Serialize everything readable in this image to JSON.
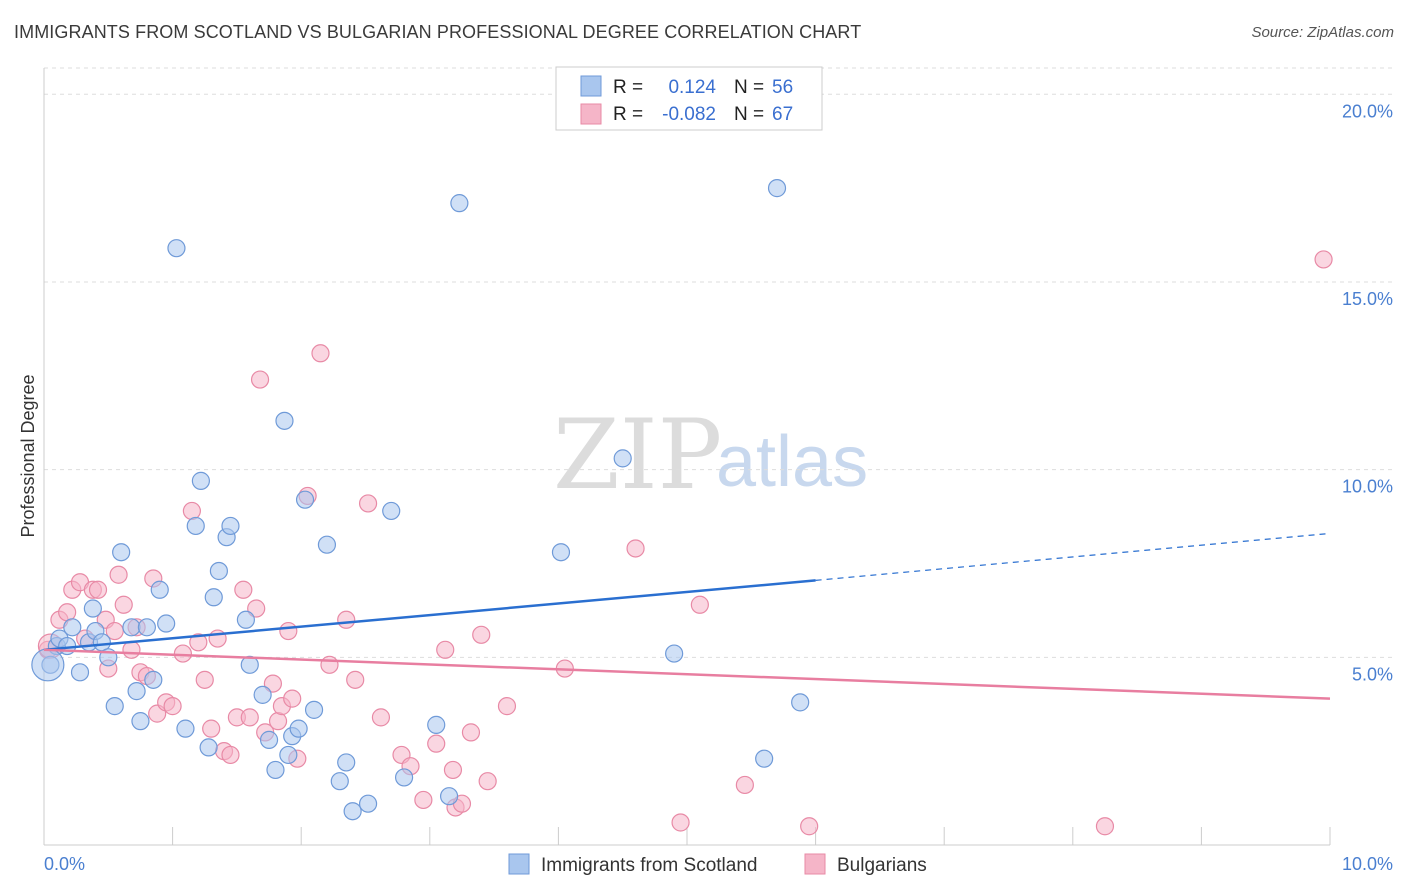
{
  "title": "IMMIGRANTS FROM SCOTLAND VS BULGARIAN PROFESSIONAL DEGREE CORRELATION CHART",
  "source": "Source: ZipAtlas.com",
  "watermark": {
    "zip": "ZIP",
    "atlas": "atlas"
  },
  "colors": {
    "blue_fill": "#a9c6ee",
    "blue_stroke": "#6f9ad8",
    "blue_line": "#2a6fd0",
    "pink_fill": "#f5b5c8",
    "pink_stroke": "#e88aa6",
    "pink_line": "#e87ea0",
    "tick_text": "#4a7fd0",
    "grid": "#dddddd"
  },
  "legend": {
    "rows": [
      {
        "r_label": "R =",
        "r_value": "0.124",
        "n_label": "N =",
        "n_value": "56"
      },
      {
        "r_label": "R =",
        "r_value": "-0.082",
        "n_label": "N =",
        "n_value": "67"
      }
    ]
  },
  "chart_data": {
    "type": "scatter",
    "xlabel": "",
    "ylabel": "Professional Degree",
    "xlim": [
      0,
      10
    ],
    "ylim": [
      0,
      20.7
    ],
    "x_ticks": [
      {
        "value": 0,
        "label": "0.0%"
      },
      {
        "value": 10,
        "label": "10.0%"
      }
    ],
    "y_ticks": [
      {
        "value": 5,
        "label": "5.0%"
      },
      {
        "value": 10,
        "label": "10.0%"
      },
      {
        "value": 15,
        "label": "15.0%"
      },
      {
        "value": 20,
        "label": "20.0%"
      }
    ],
    "grid": true,
    "legend_position": "bottom",
    "series": [
      {
        "name": "Immigrants from Scotland",
        "color": "#a9c6ee",
        "trend": {
          "x0": 0,
          "y0": 5.2,
          "x1": 6.0,
          "y1": 7.05,
          "dashed_to_x": 10,
          "dashed_to_y": 8.3
        },
        "points": [
          [
            0.05,
            4.8
          ],
          [
            0.1,
            5.3
          ],
          [
            0.12,
            5.5
          ],
          [
            0.18,
            5.3
          ],
          [
            0.22,
            5.8
          ],
          [
            0.28,
            4.6
          ],
          [
            0.35,
            5.4
          ],
          [
            0.38,
            6.3
          ],
          [
            0.4,
            5.7
          ],
          [
            0.45,
            5.4
          ],
          [
            0.5,
            5.0
          ],
          [
            0.55,
            3.7
          ],
          [
            0.6,
            7.8
          ],
          [
            0.68,
            5.8
          ],
          [
            0.72,
            4.1
          ],
          [
            0.75,
            3.3
          ],
          [
            0.8,
            5.8
          ],
          [
            0.85,
            4.4
          ],
          [
            0.9,
            6.8
          ],
          [
            0.95,
            5.9
          ],
          [
            1.03,
            15.9
          ],
          [
            1.1,
            3.1
          ],
          [
            1.18,
            8.5
          ],
          [
            1.22,
            9.7
          ],
          [
            1.28,
            2.6
          ],
          [
            1.32,
            6.6
          ],
          [
            1.36,
            7.3
          ],
          [
            1.42,
            8.2
          ],
          [
            1.45,
            8.5
          ],
          [
            1.57,
            6.0
          ],
          [
            1.6,
            4.8
          ],
          [
            1.7,
            4.0
          ],
          [
            1.75,
            2.8
          ],
          [
            1.8,
            2.0
          ],
          [
            1.87,
            11.3
          ],
          [
            1.9,
            2.4
          ],
          [
            1.93,
            2.9
          ],
          [
            1.98,
            3.1
          ],
          [
            2.03,
            9.2
          ],
          [
            2.1,
            3.6
          ],
          [
            2.2,
            8.0
          ],
          [
            2.3,
            1.7
          ],
          [
            2.35,
            2.2
          ],
          [
            2.4,
            0.9
          ],
          [
            2.52,
            1.1
          ],
          [
            2.7,
            8.9
          ],
          [
            2.8,
            1.8
          ],
          [
            3.05,
            3.2
          ],
          [
            3.15,
            1.3
          ],
          [
            3.23,
            17.1
          ],
          [
            4.02,
            7.8
          ],
          [
            4.5,
            10.3
          ],
          [
            4.9,
            5.1
          ],
          [
            5.6,
            2.3
          ],
          [
            5.7,
            17.5
          ],
          [
            5.88,
            3.8
          ]
        ]
      },
      {
        "name": "Bulgarians",
        "color": "#f5b5c8",
        "trend": {
          "x0": 0,
          "y0": 5.2,
          "x1": 10,
          "y1": 3.9
        },
        "points": [
          [
            0.03,
            5.2
          ],
          [
            0.12,
            6.0
          ],
          [
            0.18,
            6.2
          ],
          [
            0.22,
            6.8
          ],
          [
            0.28,
            7.0
          ],
          [
            0.32,
            5.5
          ],
          [
            0.38,
            6.8
          ],
          [
            0.42,
            6.8
          ],
          [
            0.48,
            6.0
          ],
          [
            0.5,
            4.7
          ],
          [
            0.55,
            5.7
          ],
          [
            0.58,
            7.2
          ],
          [
            0.62,
            6.4
          ],
          [
            0.68,
            5.2
          ],
          [
            0.72,
            5.8
          ],
          [
            0.75,
            4.6
          ],
          [
            0.8,
            4.5
          ],
          [
            0.85,
            7.1
          ],
          [
            0.88,
            3.5
          ],
          [
            0.95,
            3.8
          ],
          [
            1.0,
            3.7
          ],
          [
            1.08,
            5.1
          ],
          [
            1.15,
            8.9
          ],
          [
            1.2,
            5.4
          ],
          [
            1.25,
            4.4
          ],
          [
            1.3,
            3.1
          ],
          [
            1.35,
            5.5
          ],
          [
            1.4,
            2.5
          ],
          [
            1.45,
            2.4
          ],
          [
            1.5,
            3.4
          ],
          [
            1.55,
            6.8
          ],
          [
            1.6,
            3.4
          ],
          [
            1.65,
            6.3
          ],
          [
            1.68,
            12.4
          ],
          [
            1.72,
            3.0
          ],
          [
            1.78,
            4.3
          ],
          [
            1.82,
            3.3
          ],
          [
            1.85,
            3.7
          ],
          [
            1.9,
            5.7
          ],
          [
            1.93,
            3.9
          ],
          [
            1.97,
            2.3
          ],
          [
            2.05,
            9.3
          ],
          [
            2.15,
            13.1
          ],
          [
            2.22,
            4.8
          ],
          [
            2.35,
            6.0
          ],
          [
            2.42,
            4.4
          ],
          [
            2.52,
            9.1
          ],
          [
            2.62,
            3.4
          ],
          [
            2.78,
            2.4
          ],
          [
            2.85,
            2.1
          ],
          [
            2.95,
            1.2
          ],
          [
            3.05,
            2.7
          ],
          [
            3.12,
            5.2
          ],
          [
            3.18,
            2.0
          ],
          [
            3.2,
            1.0
          ],
          [
            3.25,
            1.1
          ],
          [
            3.32,
            3.0
          ],
          [
            3.4,
            5.6
          ],
          [
            3.45,
            1.7
          ],
          [
            3.6,
            3.7
          ],
          [
            4.05,
            4.7
          ],
          [
            4.6,
            7.9
          ],
          [
            4.95,
            0.6
          ],
          [
            5.1,
            6.4
          ],
          [
            5.45,
            1.6
          ],
          [
            5.95,
            0.5
          ],
          [
            8.25,
            0.5
          ],
          [
            9.95,
            15.6
          ]
        ]
      }
    ]
  }
}
